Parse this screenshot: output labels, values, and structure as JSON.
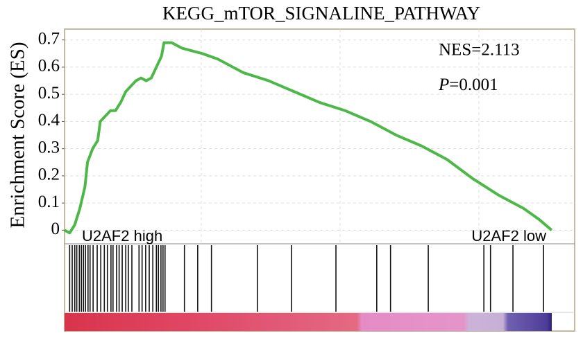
{
  "chart_data": {
    "type": "enrichment",
    "title": "KEGG_mTOR_SIGNALINE_PATHWAY",
    "y_label": "Enrichment Score (ES)",
    "annotations": [
      "NES=2.113",
      "P=0.001"
    ],
    "group_labels": [
      "U2AF2 high",
      "U2AF2 low"
    ],
    "x": [
      0,
      1,
      2,
      3,
      4,
      4.5,
      5.5,
      6.5,
      7,
      8,
      9,
      10,
      11,
      12,
      13,
      14,
      15,
      16,
      17,
      18,
      19,
      19.5,
      21,
      23,
      25,
      27,
      30,
      35,
      40,
      45,
      50,
      55,
      60,
      65,
      70,
      75,
      80,
      85,
      90,
      93,
      95.5
    ],
    "series": [
      {
        "name": "ES",
        "color": "#4db848",
        "values": [
          0,
          -0.01,
          0.02,
          0.08,
          0.16,
          0.25,
          0.3,
          0.33,
          0.4,
          0.42,
          0.44,
          0.44,
          0.47,
          0.51,
          0.53,
          0.55,
          0.56,
          0.55,
          0.56,
          0.6,
          0.64,
          0.69,
          0.69,
          0.67,
          0.66,
          0.65,
          0.63,
          0.58,
          0.55,
          0.51,
          0.47,
          0.44,
          0.4,
          0.35,
          0.31,
          0.26,
          0.19,
          0.13,
          0.08,
          0.04,
          0
        ]
      }
    ],
    "hits": [
      1.0,
      1.5,
      2.0,
      2.4,
      2.9,
      3.3,
      3.7,
      4.1,
      4.6,
      5.0,
      5.6,
      6.4,
      7.1,
      7.8,
      8.4,
      9.1,
      9.5,
      10.2,
      10.7,
      11.3,
      12.0,
      12.5,
      13.2,
      14.6,
      15.2,
      15.9,
      16.6,
      17.3,
      18.0,
      18.4,
      18.9,
      19.3,
      19.7,
      23.5,
      26.1,
      28.8,
      37.8,
      44.5,
      53.2,
      61.2,
      63.9,
      71.3,
      82.2,
      83.5,
      87.9,
      93.9
    ],
    "xlim": [
      0,
      100
    ],
    "ylim": [
      -0.05,
      0.74
    ],
    "yticks": [
      0,
      0.1,
      0.2,
      0.3,
      0.4,
      0.5,
      0.6,
      0.7
    ],
    "grid": true
  }
}
